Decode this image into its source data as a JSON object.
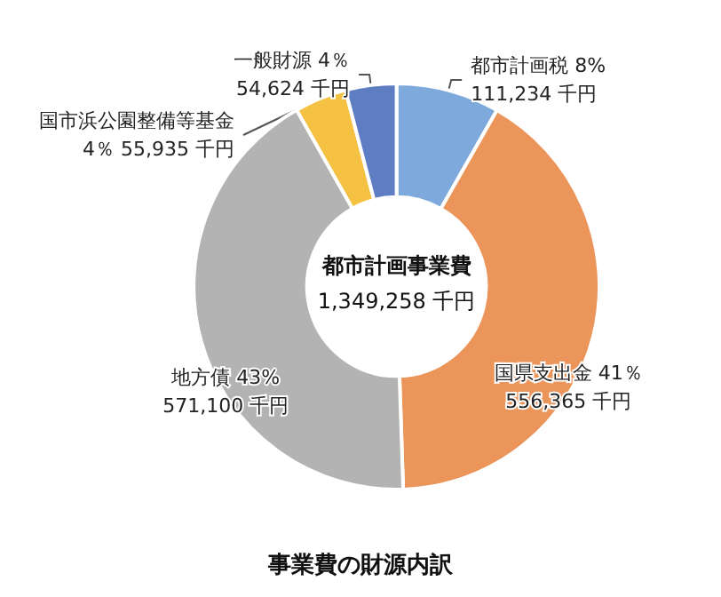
{
  "chart_data": {
    "type": "donut",
    "title": "事業費の財源内訳",
    "categories": [
      "都市計画税",
      "国県支出金",
      "地方債",
      "国市浜公園整備等基金",
      "一般財源"
    ],
    "values": [
      111234,
      556365,
      571100,
      55935,
      54624
    ],
    "value_labels": [
      "8%\n111,234 千円",
      "41％\n556,365 千円",
      "43%\n571,100 千円",
      "4％\n55,935 千円",
      "4％\n54,624 千円"
    ],
    "colors": [
      "#7ea9dc",
      "#eb955a",
      "#b3b3b3",
      "#f4c142",
      "#5e7dc2"
    ],
    "annotations": [
      "都市計画事業費",
      "1,349,258 千円"
    ],
    "legend": false
  }
}
